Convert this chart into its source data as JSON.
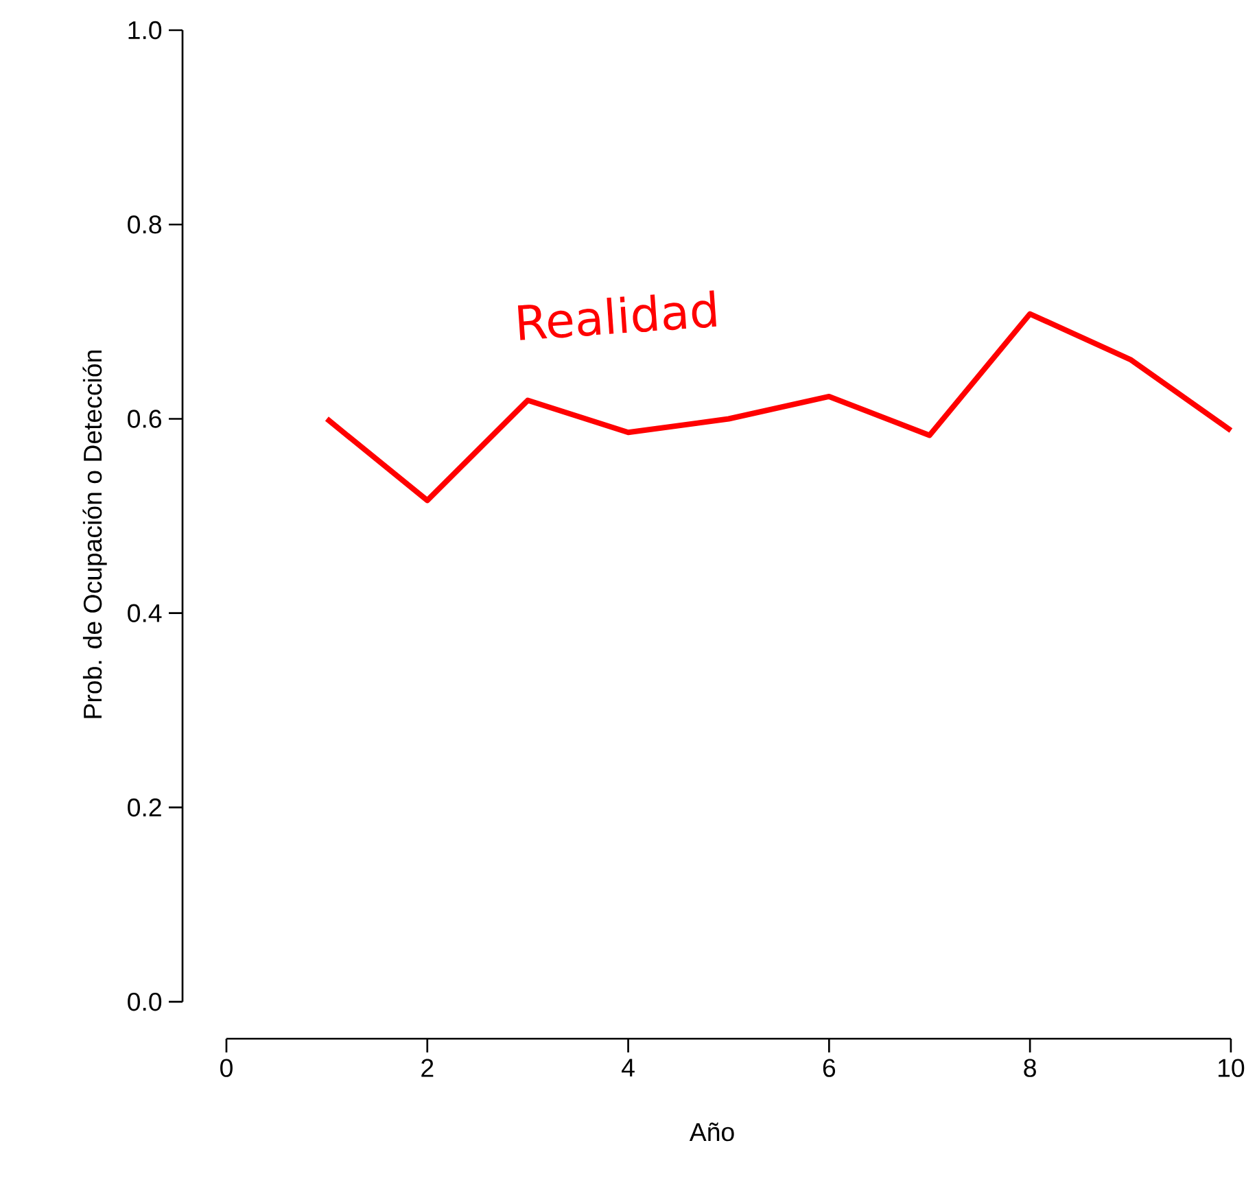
{
  "chart_data": {
    "type": "line",
    "xlabel": "Año",
    "ylabel": "Prob. de Ocupación o Detección",
    "x": [
      1,
      2,
      3,
      4,
      5,
      6,
      7,
      8,
      9,
      10
    ],
    "values": [
      0.6,
      0.516,
      0.619,
      0.586,
      0.6,
      0.623,
      0.583,
      0.708,
      0.661,
      0.588
    ],
    "color": "#ff0000",
    "xlim": [
      0,
      10
    ],
    "xticks": [
      0,
      2,
      4,
      6,
      8,
      10
    ],
    "ylim": [
      0,
      1
    ],
    "yticks": [
      {
        "value": 0,
        "label": "0.0"
      },
      0.2,
      0.4,
      0.6,
      0.8,
      {
        "value": 1,
        "label": "1.0"
      }
    ],
    "annotations": [
      "Realidad"
    ]
  }
}
